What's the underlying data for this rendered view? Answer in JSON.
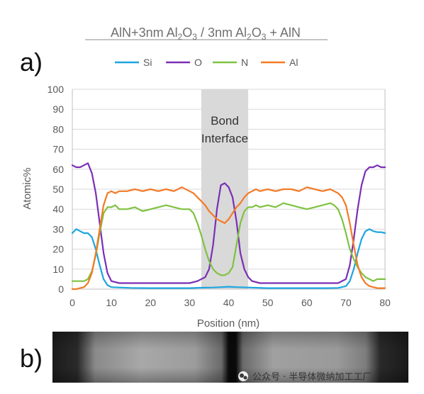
{
  "figure": {
    "title_parts": [
      "AlN+3nm Al",
      "2",
      "O",
      "3",
      " / 3nm Al",
      "2",
      "O",
      "3",
      " + AlN"
    ],
    "panel_a": "a)",
    "panel_b": "b)",
    "watermark": "公众号 · 半导体微纳加工工厂"
  },
  "colors": {
    "Si": "#1ca5e0",
    "O": "#7a2fb5",
    "N": "#7fc241",
    "Al": "#f47a25",
    "band": "#d9d9d9",
    "grid": "#d9d9d9"
  },
  "chart_data": {
    "type": "line",
    "xlabel": "Position (nm)",
    "ylabel": "Atomic%",
    "xlim": [
      0,
      80
    ],
    "ylim": [
      0,
      100
    ],
    "xticks": [
      0,
      10,
      20,
      30,
      40,
      50,
      60,
      70,
      80
    ],
    "yticks": [
      0,
      10,
      20,
      30,
      40,
      50,
      60,
      70,
      80,
      90,
      100
    ],
    "grid": "horizontal",
    "legend_position": "top",
    "annotation": {
      "lines": [
        "Bond",
        "Interface"
      ],
      "x_range": [
        33,
        45
      ]
    },
    "series": [
      {
        "name": "Si",
        "x": [
          0,
          1,
          2,
          3,
          4,
          5,
          6,
          7,
          8,
          9,
          10,
          12,
          15,
          20,
          25,
          30,
          33,
          36,
          38,
          40,
          42,
          45,
          50,
          55,
          60,
          65,
          68,
          70,
          71,
          72,
          73,
          74,
          75,
          76,
          77,
          78,
          79,
          80
        ],
        "y": [
          28,
          30,
          29,
          28,
          28,
          26,
          20,
          12,
          5,
          2,
          1,
          0.8,
          0.6,
          0.5,
          0.5,
          0.5,
          0.7,
          0.8,
          1,
          1.2,
          1,
          0.8,
          0.5,
          0.5,
          0.5,
          0.5,
          0.6,
          1.5,
          4,
          10,
          18,
          25,
          29,
          30,
          29,
          28.5,
          28.5,
          28
        ]
      },
      {
        "name": "O",
        "x": [
          0,
          1,
          2,
          3,
          4,
          5,
          6,
          7,
          8,
          9,
          10,
          12,
          15,
          20,
          25,
          30,
          32,
          34,
          35,
          36,
          37,
          38,
          39,
          40,
          41,
          42,
          43,
          44,
          45,
          46,
          48,
          50,
          55,
          60,
          65,
          68,
          70,
          71,
          72,
          73,
          74,
          75,
          76,
          77,
          78,
          79,
          80
        ],
        "y": [
          62,
          61,
          61,
          62,
          63,
          58,
          48,
          33,
          18,
          8,
          4,
          3,
          3,
          3,
          3,
          3,
          4,
          6,
          10,
          22,
          40,
          52,
          53,
          51,
          46,
          34,
          18,
          10,
          6,
          4,
          3,
          3,
          3,
          3,
          3,
          3,
          5,
          12,
          25,
          40,
          52,
          59,
          61,
          61,
          62,
          61,
          61
        ]
      },
      {
        "name": "N",
        "x": [
          0,
          1,
          2,
          3,
          4,
          5,
          6,
          7,
          8,
          9,
          10,
          11,
          12,
          14,
          16,
          18,
          20,
          22,
          24,
          26,
          28,
          30,
          31,
          32,
          33,
          34,
          35,
          36,
          37,
          38,
          39,
          40,
          41,
          42,
          43,
          44,
          45,
          46,
          47,
          48,
          50,
          52,
          54,
          56,
          58,
          60,
          62,
          64,
          66,
          67,
          68,
          69,
          70,
          71,
          72,
          73,
          74,
          75,
          76,
          77,
          78,
          79,
          80
        ],
        "y": [
          4,
          4,
          4,
          4,
          5,
          9,
          17,
          28,
          38,
          41,
          41,
          42,
          40,
          40,
          41,
          39,
          40,
          41,
          42,
          41,
          40,
          40,
          38,
          33,
          27,
          20,
          14,
          10,
          8,
          7,
          7,
          8,
          11,
          22,
          33,
          39,
          41,
          41,
          42,
          41,
          42,
          41,
          43,
          42,
          41,
          40,
          41,
          42,
          43,
          42,
          40,
          35,
          28,
          20,
          15,
          11,
          8,
          6,
          5,
          4,
          5,
          5,
          5
        ]
      },
      {
        "name": "Al",
        "x": [
          0,
          1,
          2,
          3,
          4,
          5,
          6,
          7,
          8,
          9,
          10,
          11,
          12,
          14,
          16,
          18,
          20,
          22,
          24,
          26,
          28,
          30,
          31,
          32,
          33,
          34,
          35,
          36,
          37,
          38,
          39,
          40,
          41,
          42,
          43,
          44,
          45,
          46,
          47,
          48,
          50,
          52,
          54,
          56,
          58,
          60,
          62,
          64,
          66,
          67,
          68,
          69,
          70,
          71,
          72,
          73,
          74,
          75,
          76,
          77,
          78,
          79,
          80
        ],
        "y": [
          0,
          0,
          0.5,
          1,
          3,
          8,
          18,
          30,
          42,
          48,
          49,
          48,
          49,
          49,
          50,
          49,
          50,
          49,
          50,
          49,
          51,
          49,
          48,
          46,
          44,
          42,
          39,
          37,
          35,
          34,
          33,
          35,
          38,
          41,
          43,
          46,
          48,
          49,
          50,
          49,
          50,
          49,
          50,
          50,
          49,
          51,
          50,
          49,
          50,
          49,
          48,
          46,
          42,
          33,
          22,
          12,
          6,
          3,
          1.5,
          1,
          0.5,
          0.5,
          0.5
        ]
      }
    ]
  }
}
